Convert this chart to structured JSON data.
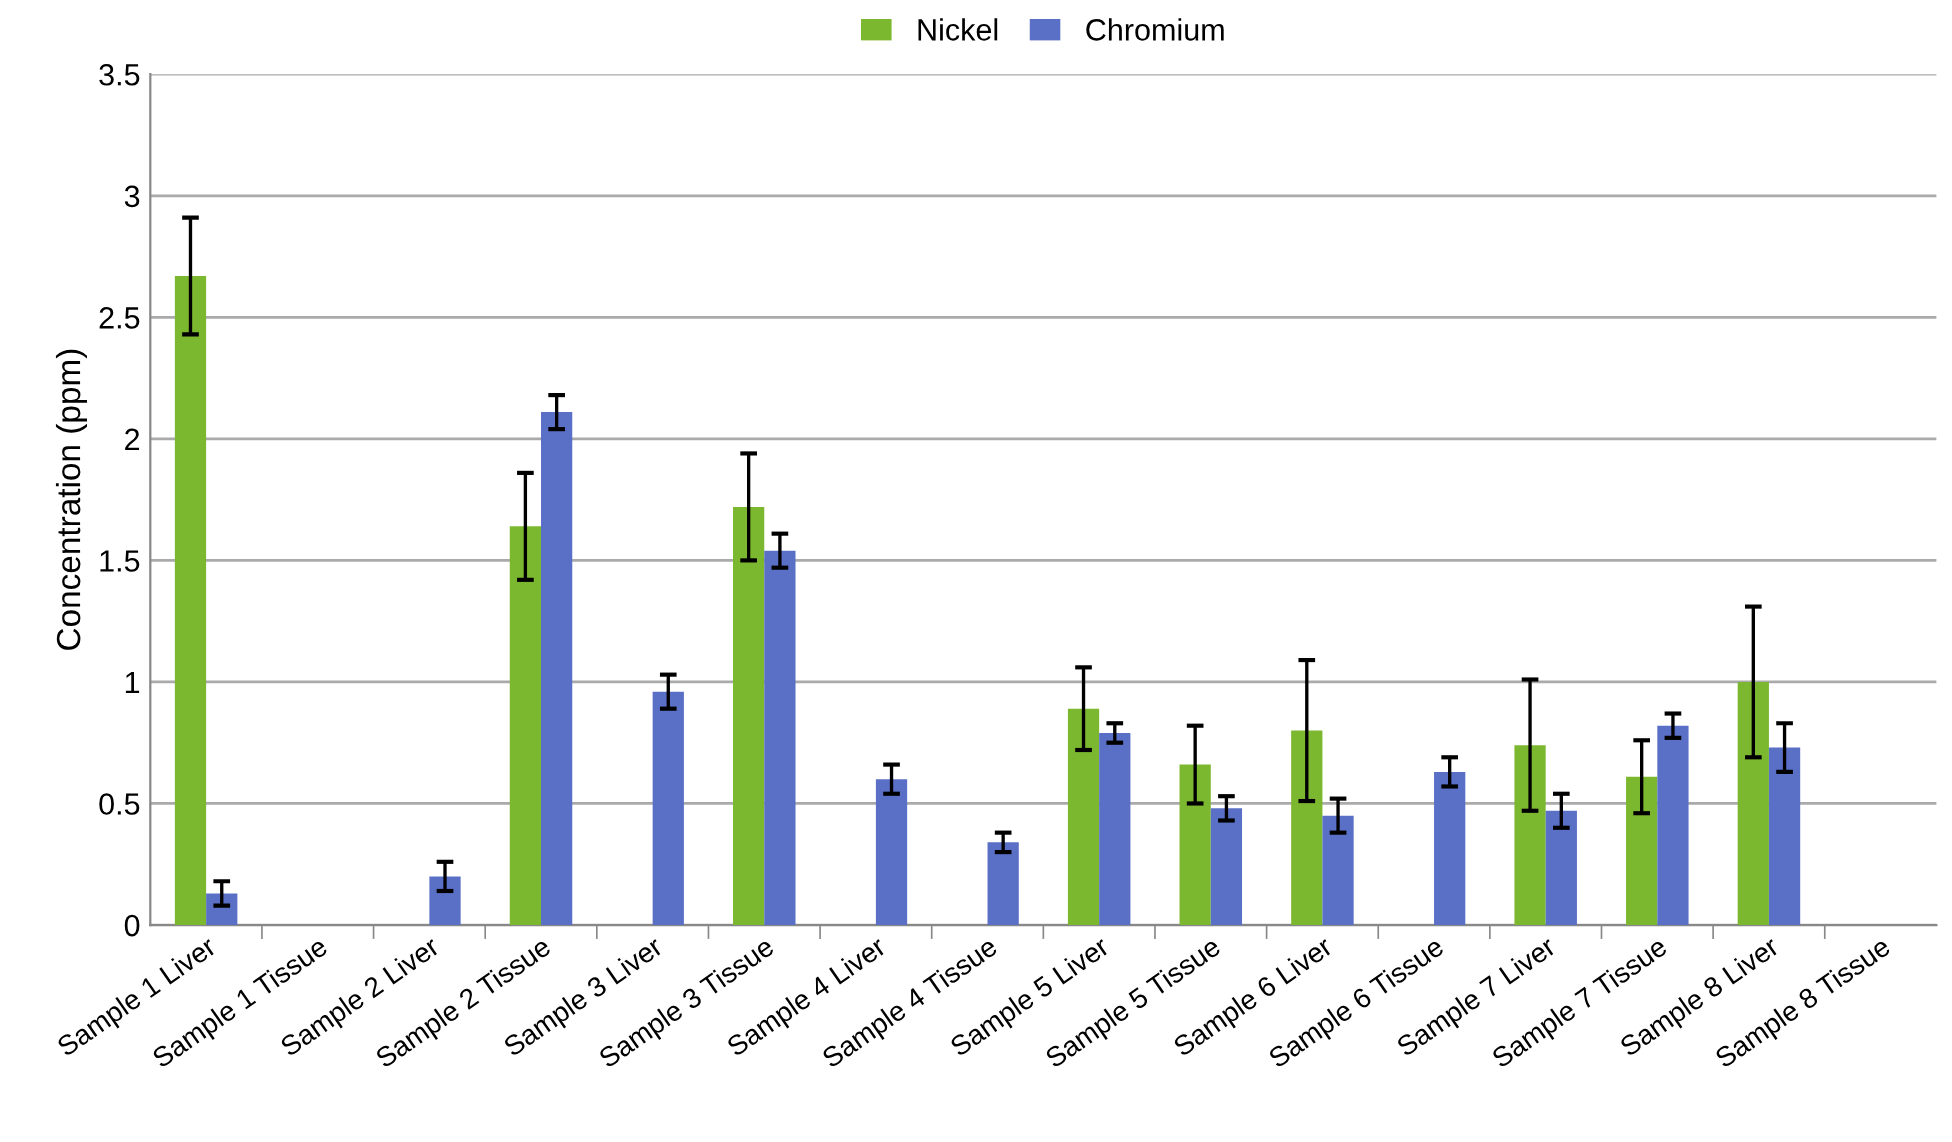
{
  "chart_data": {
    "type": "bar",
    "ylabel": "Concentration (ppm)",
    "categories": [
      "Sample 1 Liver",
      "Sample 1 Tissue",
      "Sample 2 Liver",
      "Sample 2 Tissue",
      "Sample 3 Liver",
      "Sample 3 Tissue",
      "Sample 4 Liver",
      "Sample 4 Tissue",
      "Sample 5 Liver",
      "Sample 5 Tissue",
      "Sample 6 Liver",
      "Sample 6 Tissue",
      "Sample 7 Liver",
      "Sample 7 Tissue",
      "Sample 8 Liver",
      "Sample 8 Tissue"
    ],
    "series": [
      {
        "name": "Nickel",
        "color": "#7cb82f",
        "values": [
          2.67,
          null,
          null,
          1.64,
          null,
          1.72,
          null,
          null,
          0.89,
          0.66,
          0.8,
          null,
          0.74,
          0.61,
          1.0,
          null
        ],
        "errors": [
          0.24,
          null,
          null,
          0.22,
          null,
          0.22,
          null,
          null,
          0.17,
          0.16,
          0.29,
          null,
          0.27,
          0.15,
          0.31,
          null
        ]
      },
      {
        "name": "Chromium",
        "color": "#5a6fc6",
        "values": [
          0.13,
          null,
          0.2,
          2.11,
          0.96,
          1.54,
          0.6,
          0.34,
          0.79,
          0.48,
          0.45,
          0.63,
          0.47,
          0.82,
          0.73,
          null
        ],
        "errors": [
          0.05,
          null,
          0.06,
          0.07,
          0.07,
          0.07,
          0.06,
          0.04,
          0.04,
          0.05,
          0.07,
          0.06,
          0.07,
          0.05,
          0.1,
          null
        ]
      }
    ],
    "ylim": [
      0,
      3.5
    ],
    "yticks": [
      0,
      0.5,
      1,
      1.5,
      2,
      2.5,
      3,
      3.5
    ],
    "grid": "y",
    "legend": "top"
  }
}
